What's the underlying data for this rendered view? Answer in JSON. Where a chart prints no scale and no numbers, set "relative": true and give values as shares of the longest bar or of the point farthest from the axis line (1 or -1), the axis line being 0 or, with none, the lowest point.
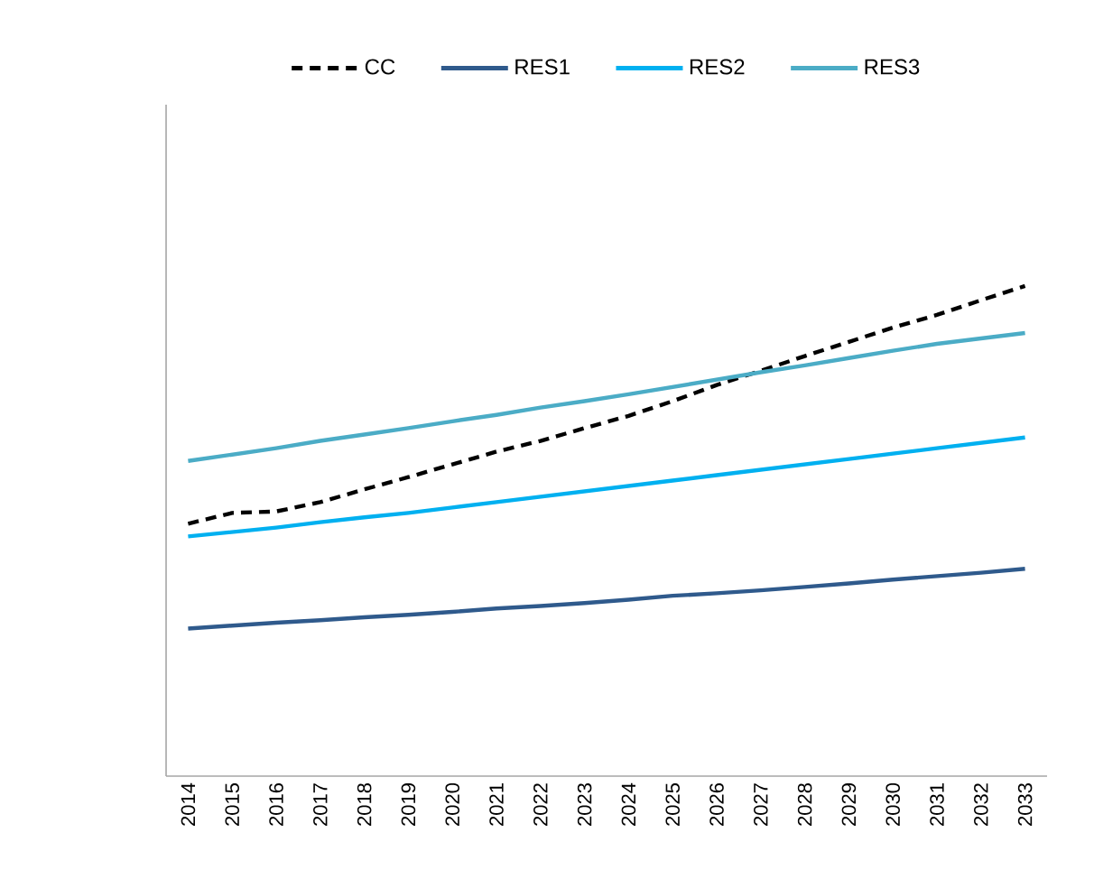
{
  "chart_data": {
    "type": "line",
    "relative": true,
    "legend": "top",
    "categories": [
      "2014",
      "2015",
      "2016",
      "2017",
      "2018",
      "2019",
      "2020",
      "2021",
      "2022",
      "2023",
      "2024",
      "2025",
      "2026",
      "2027",
      "2028",
      "2029",
      "2030",
      "2031",
      "2032",
      "2033"
    ],
    "series": [
      {
        "name": "CC",
        "color": "#000000",
        "line_style": "dashed",
        "values": [
          0.515,
          0.537,
          0.54,
          0.559,
          0.585,
          0.61,
          0.636,
          0.662,
          0.684,
          0.71,
          0.735,
          0.765,
          0.798,
          0.827,
          0.857,
          0.886,
          0.915,
          0.941,
          0.971,
          1
        ]
      },
      {
        "name": "RES1",
        "color": "#2f5a8c",
        "values": [
          0.301,
          0.307,
          0.313,
          0.318,
          0.324,
          0.329,
          0.335,
          0.342,
          0.347,
          0.353,
          0.36,
          0.368,
          0.373,
          0.379,
          0.386,
          0.393,
          0.401,
          0.408,
          0.415,
          0.423
        ]
      },
      {
        "name": "RES2",
        "color": "#00b0f0",
        "values": [
          0.489,
          0.498,
          0.507,
          0.518,
          0.528,
          0.537,
          0.548,
          0.559,
          0.57,
          0.581,
          0.592,
          0.603,
          0.614,
          0.625,
          0.636,
          0.647,
          0.658,
          0.669,
          0.68,
          0.691
        ]
      },
      {
        "name": "RES3",
        "color": "#4bacc6",
        "values": [
          0.643,
          0.656,
          0.669,
          0.684,
          0.697,
          0.71,
          0.724,
          0.737,
          0.752,
          0.765,
          0.779,
          0.794,
          0.809,
          0.824,
          0.838,
          0.853,
          0.868,
          0.882,
          0.893,
          0.904
        ]
      }
    ]
  }
}
